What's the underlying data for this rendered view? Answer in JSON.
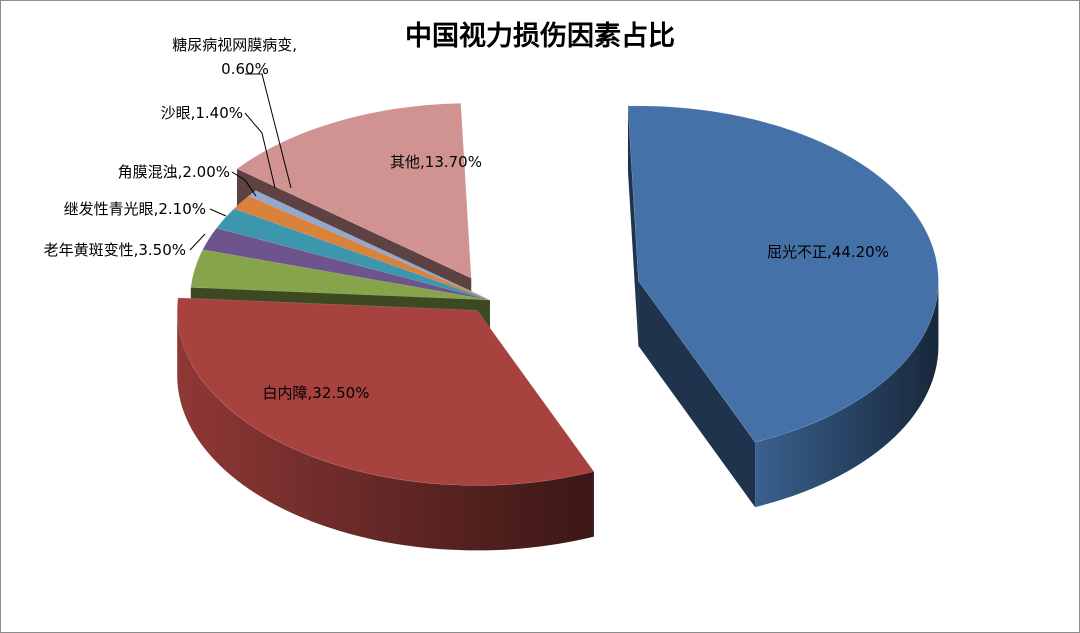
{
  "chart_data": {
    "type": "pie",
    "style": "3d-exploded",
    "title": "中国视力损伤因素占比",
    "legend": "none",
    "categories": [
      "屈光不正",
      "白内障",
      "老年黄斑变性",
      "继发性青光眼",
      "角膜混浊",
      "沙眼",
      "糖尿病视网膜病变",
      "其他"
    ],
    "values": [
      44.2,
      32.5,
      3.5,
      2.1,
      2.0,
      1.4,
      0.6,
      13.7
    ],
    "labels": [
      "屈光不正,44.20%",
      "白内障,32.50%",
      "老年黄斑变性,3.50%",
      "继发性青光眼,2.10%",
      "角膜混浊,2.00%",
      "沙眼,1.40%",
      "糖尿病视网膜病变,",
      "其他,13.70%"
    ],
    "label_second_lines": [
      "",
      "",
      "",
      "",
      "",
      "",
      "0.60%",
      ""
    ],
    "colors": [
      "#4472a8",
      "#a8423f",
      "#86a44a",
      "#6e548d",
      "#3c96ae",
      "#d9823b",
      "#91a8cf",
      "#d19392"
    ]
  }
}
